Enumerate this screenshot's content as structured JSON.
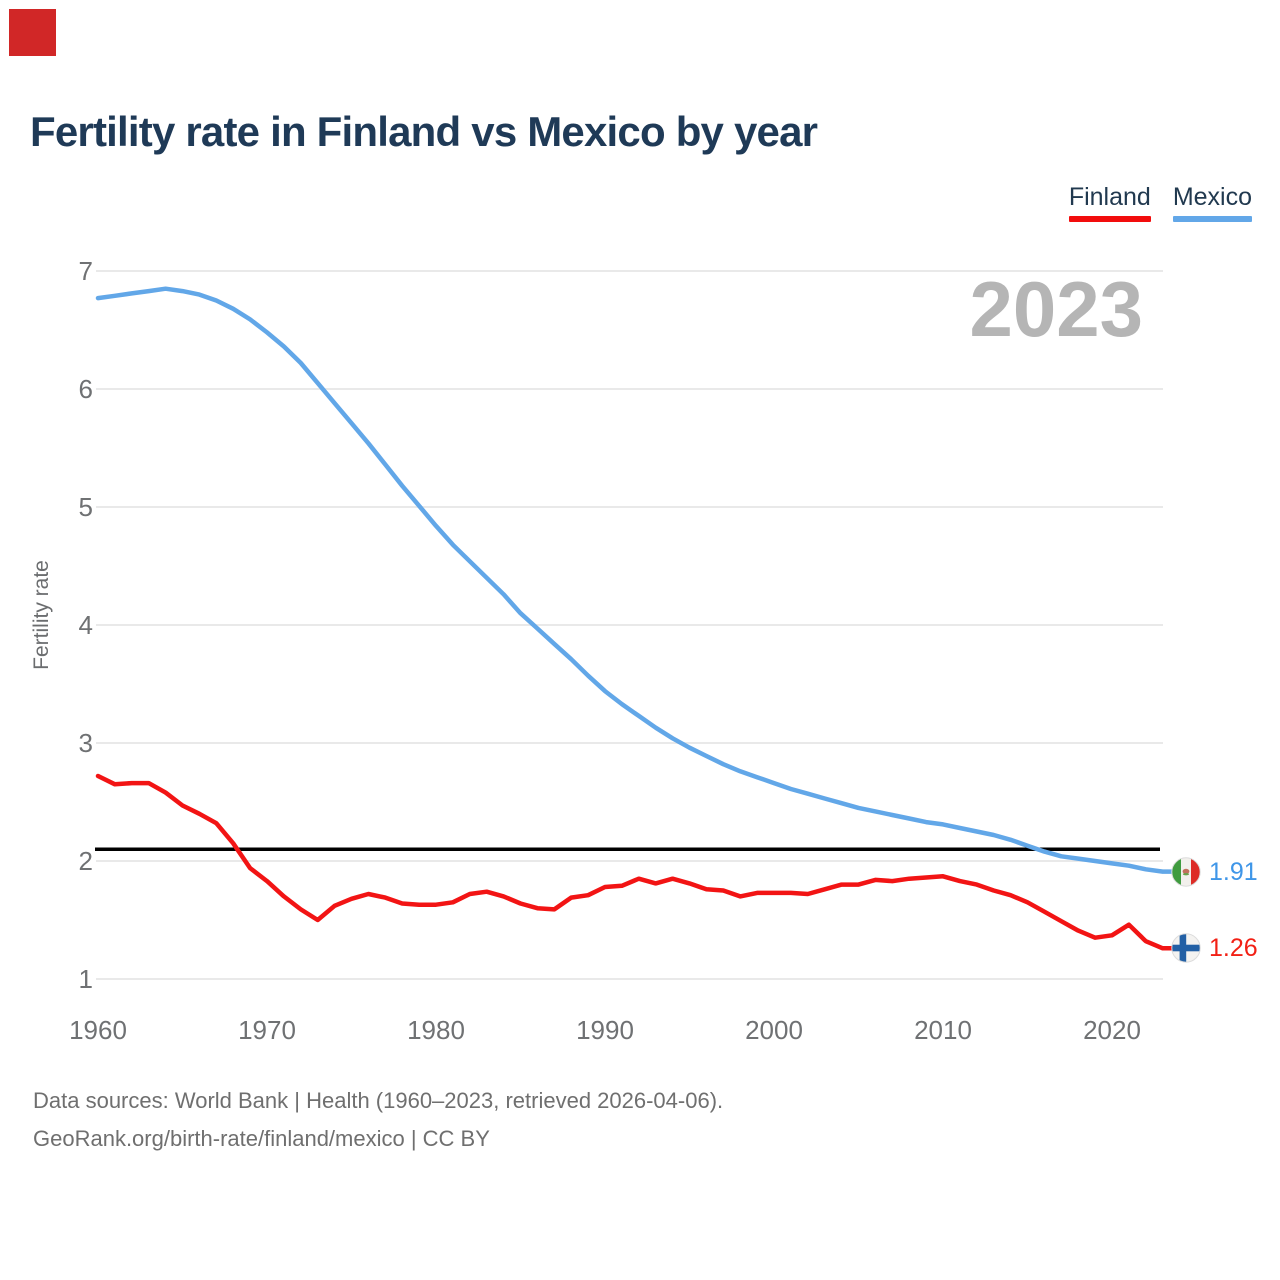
{
  "marker": {
    "color": "#d12727"
  },
  "header": {
    "title": "Fertility rate in Finland vs Mexico by year"
  },
  "legend": [
    {
      "label": "Finland",
      "color": "#f20d0d"
    },
    {
      "label": "Mexico",
      "color": "#62a7e8"
    }
  ],
  "watermark": "2023",
  "y_axis": {
    "label": "Fertility rate",
    "ticks": [
      1,
      2,
      3,
      4,
      5,
      6,
      7
    ]
  },
  "x_axis": {
    "ticks": [
      1960,
      1970,
      1980,
      1990,
      2000,
      2010,
      2020
    ]
  },
  "chart_data": {
    "type": "line",
    "title": "Fertility rate in Finland vs Mexico by year",
    "ylabel": "Fertility rate",
    "ylim": [
      1,
      7
    ],
    "grid": true,
    "legend_position": "top-right",
    "x": [
      1960,
      1961,
      1962,
      1963,
      1964,
      1965,
      1966,
      1967,
      1968,
      1969,
      1970,
      1971,
      1972,
      1973,
      1974,
      1975,
      1976,
      1977,
      1978,
      1979,
      1980,
      1981,
      1982,
      1983,
      1984,
      1985,
      1986,
      1987,
      1988,
      1989,
      1990,
      1991,
      1992,
      1993,
      1994,
      1995,
      1996,
      1997,
      1998,
      1999,
      2000,
      2001,
      2002,
      2003,
      2004,
      2005,
      2006,
      2007,
      2008,
      2009,
      2010,
      2011,
      2012,
      2013,
      2014,
      2015,
      2016,
      2017,
      2018,
      2019,
      2020,
      2021,
      2022,
      2023
    ],
    "series": [
      {
        "name": "Finland",
        "color": "#f21414",
        "values": [
          2.72,
          2.65,
          2.66,
          2.66,
          2.58,
          2.47,
          2.4,
          2.32,
          2.15,
          1.94,
          1.83,
          1.7,
          1.59,
          1.5,
          1.62,
          1.68,
          1.72,
          1.69,
          1.64,
          1.63,
          1.63,
          1.65,
          1.72,
          1.74,
          1.7,
          1.64,
          1.6,
          1.59,
          1.69,
          1.71,
          1.78,
          1.79,
          1.85,
          1.81,
          1.85,
          1.81,
          1.76,
          1.75,
          1.7,
          1.73,
          1.73,
          1.73,
          1.72,
          1.76,
          1.8,
          1.8,
          1.84,
          1.83,
          1.85,
          1.86,
          1.87,
          1.83,
          1.8,
          1.75,
          1.71,
          1.65,
          1.57,
          1.49,
          1.41,
          1.35,
          1.37,
          1.46,
          1.32,
          1.26
        ]
      },
      {
        "name": "Mexico",
        "color": "#62a7e8",
        "values": [
          6.77,
          6.79,
          6.81,
          6.83,
          6.85,
          6.83,
          6.8,
          6.75,
          6.68,
          6.59,
          6.48,
          6.36,
          6.22,
          6.05,
          5.88,
          5.71,
          5.54,
          5.36,
          5.18,
          5.01,
          4.84,
          4.68,
          4.54,
          4.4,
          4.26,
          4.1,
          3.97,
          3.84,
          3.71,
          3.57,
          3.44,
          3.33,
          3.23,
          3.13,
          3.04,
          2.96,
          2.89,
          2.82,
          2.76,
          2.71,
          2.66,
          2.61,
          2.57,
          2.53,
          2.49,
          2.45,
          2.42,
          2.39,
          2.36,
          2.33,
          2.31,
          2.28,
          2.25,
          2.22,
          2.18,
          2.13,
          2.08,
          2.04,
          2.02,
          2.0,
          1.98,
          1.96,
          1.93,
          1.91
        ]
      }
    ],
    "reference_line": {
      "value": 2.1,
      "color": "#000000"
    },
    "end_labels": [
      {
        "series": "Mexico",
        "value": "1.91",
        "flag": "mexico-flag"
      },
      {
        "series": "Finland",
        "value": "1.26",
        "flag": "finland-flag"
      }
    ]
  },
  "footer": {
    "line1": "Data sources: World Bank | Health (1960–2023, retrieved 2026-04-06).",
    "line2": "GeoRank.org/birth-rate/finland/mexico | CC BY"
  }
}
